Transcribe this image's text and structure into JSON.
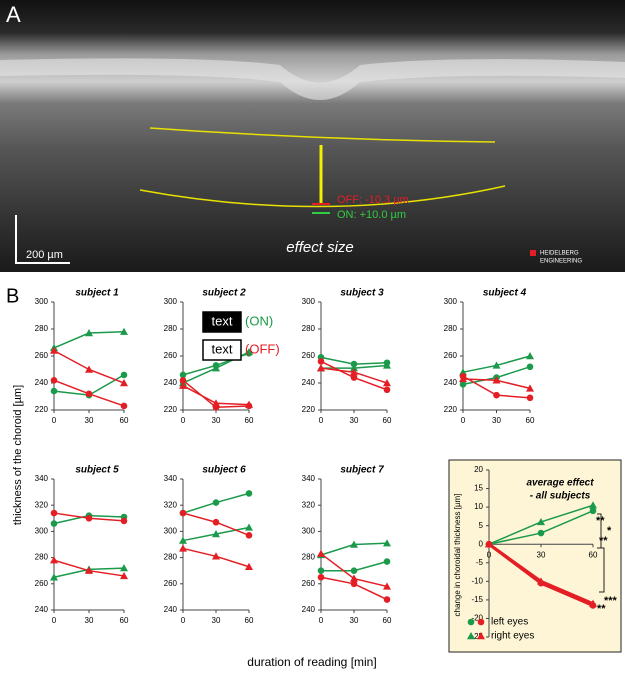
{
  "panel_a": {
    "label": "A",
    "off": "OFF: -10.3 µm",
    "on": "ON: +10.0 µm",
    "scale": "200 µm",
    "caption": "effect size",
    "logo1": "HEIDELBERG",
    "logo2": "ENGINEERING"
  },
  "figure": {
    "label": "B",
    "ylabel": "thickness of the choroid [µm]",
    "xlabel": "duration of reading [min]"
  },
  "chart_data": [
    {
      "type": "line",
      "title": "subject 1",
      "x": [
        0,
        30,
        60
      ],
      "xlim": [
        0,
        60
      ],
      "xticks": [
        0,
        30,
        60
      ],
      "ylim": [
        220,
        300
      ],
      "yticks": [
        220,
        240,
        260,
        280,
        300
      ],
      "series": [
        {
          "color": "#1a9a4a",
          "marker": "circle",
          "values": [
            234,
            231,
            246
          ]
        },
        {
          "color": "#1a9a4a",
          "marker": "triangle",
          "values": [
            266,
            277,
            278
          ]
        },
        {
          "color": "#e31e24",
          "marker": "circle",
          "values": [
            242,
            232,
            223
          ]
        },
        {
          "color": "#e31e24",
          "marker": "triangle",
          "values": [
            264,
            250,
            240
          ]
        }
      ]
    },
    {
      "type": "line",
      "title": "subject 2",
      "x": [
        0,
        30,
        60
      ],
      "xlim": [
        0,
        60
      ],
      "xticks": [
        0,
        30,
        60
      ],
      "ylim": [
        220,
        300
      ],
      "yticks": [
        220,
        240,
        260,
        280,
        300
      ],
      "legend": [
        {
          "box": "text",
          "label": "(ON)"
        },
        {
          "box": "text",
          "label": "(OFF)"
        }
      ],
      "series": [
        {
          "color": "#1a9a4a",
          "marker": "circle",
          "values": [
            246,
            253,
            262
          ]
        },
        {
          "color": "#1a9a4a",
          "marker": "triangle",
          "values": [
            240,
            251,
            263
          ]
        },
        {
          "color": "#e31e24",
          "marker": "circle",
          "values": [
            242,
            222,
            223
          ]
        },
        {
          "color": "#e31e24",
          "marker": "triangle",
          "values": [
            238,
            225,
            224
          ]
        }
      ]
    },
    {
      "type": "line",
      "title": "subject 3",
      "x": [
        0,
        30,
        60
      ],
      "xlim": [
        0,
        60
      ],
      "xticks": [
        0,
        30,
        60
      ],
      "ylim": [
        220,
        300
      ],
      "yticks": [
        220,
        240,
        260,
        280,
        300
      ],
      "series": [
        {
          "color": "#1a9a4a",
          "marker": "circle",
          "values": [
            259,
            254,
            255
          ]
        },
        {
          "color": "#1a9a4a",
          "marker": "triangle",
          "values": [
            251,
            251,
            253
          ]
        },
        {
          "color": "#e31e24",
          "marker": "circle",
          "values": [
            256,
            244,
            235
          ]
        },
        {
          "color": "#e31e24",
          "marker": "triangle",
          "values": [
            251,
            248,
            240
          ]
        }
      ]
    },
    {
      "type": "line",
      "title": "subject 4",
      "x": [
        0,
        30,
        60
      ],
      "xlim": [
        0,
        60
      ],
      "xticks": [
        0,
        30,
        60
      ],
      "ylim": [
        220,
        300
      ],
      "yticks": [
        220,
        240,
        260,
        280,
        300
      ],
      "series": [
        {
          "color": "#1a9a4a",
          "marker": "circle",
          "values": [
            239,
            244,
            252
          ]
        },
        {
          "color": "#1a9a4a",
          "marker": "triangle",
          "values": [
            248,
            253,
            260
          ]
        },
        {
          "color": "#e31e24",
          "marker": "circle",
          "values": [
            245,
            231,
            229
          ]
        },
        {
          "color": "#e31e24",
          "marker": "triangle",
          "values": [
            243,
            242,
            236
          ]
        }
      ]
    },
    {
      "type": "line",
      "title": "subject 5",
      "x": [
        0,
        30,
        60
      ],
      "xlim": [
        0,
        60
      ],
      "xticks": [
        0,
        30,
        60
      ],
      "ylim": [
        240,
        340
      ],
      "yticks": [
        240,
        260,
        280,
        300,
        320,
        340
      ],
      "series": [
        {
          "color": "#1a9a4a",
          "marker": "circle",
          "values": [
            306,
            312,
            311
          ]
        },
        {
          "color": "#1a9a4a",
          "marker": "triangle",
          "values": [
            265,
            271,
            272
          ]
        },
        {
          "color": "#e31e24",
          "marker": "circle",
          "values": [
            314,
            310,
            308
          ]
        },
        {
          "color": "#e31e24",
          "marker": "triangle",
          "values": [
            278,
            270,
            266
          ]
        }
      ]
    },
    {
      "type": "line",
      "title": "subject 6",
      "x": [
        0,
        30,
        60
      ],
      "xlim": [
        0,
        60
      ],
      "xticks": [
        0,
        30,
        60
      ],
      "ylim": [
        240,
        340
      ],
      "yticks": [
        240,
        260,
        280,
        300,
        320,
        340
      ],
      "series": [
        {
          "color": "#1a9a4a",
          "marker": "circle",
          "values": [
            314,
            322,
            329
          ]
        },
        {
          "color": "#1a9a4a",
          "marker": "triangle",
          "values": [
            293,
            298,
            303
          ]
        },
        {
          "color": "#e31e24",
          "marker": "circle",
          "values": [
            314,
            307,
            297
          ]
        },
        {
          "color": "#e31e24",
          "marker": "triangle",
          "values": [
            287,
            281,
            273
          ]
        }
      ]
    },
    {
      "type": "line",
      "title": "subject 7",
      "x": [
        0,
        30,
        60
      ],
      "xlim": [
        0,
        60
      ],
      "xticks": [
        0,
        30,
        60
      ],
      "ylim": [
        240,
        340
      ],
      "yticks": [
        240,
        260,
        280,
        300,
        320,
        340
      ],
      "series": [
        {
          "color": "#1a9a4a",
          "marker": "circle",
          "values": [
            270,
            270,
            277
          ]
        },
        {
          "color": "#1a9a4a",
          "marker": "triangle",
          "values": [
            282,
            290,
            291
          ]
        },
        {
          "color": "#e31e24",
          "marker": "circle",
          "values": [
            265,
            260,
            248
          ]
        },
        {
          "color": "#e31e24",
          "marker": "triangle",
          "values": [
            283,
            264,
            258
          ]
        }
      ]
    },
    {
      "type": "line",
      "title": "average effect",
      "subtitle": "- all subjects",
      "ylabel": "change in choroidal thickness [µm]",
      "x": [
        0,
        30,
        60
      ],
      "xlim": [
        0,
        60
      ],
      "xticks": [
        0,
        30,
        60
      ],
      "ylim": [
        -25,
        20
      ],
      "yticks": [
        -25,
        -20,
        -15,
        -10,
        -5,
        0,
        5,
        10,
        15,
        20
      ],
      "legend": [
        {
          "label": "left eyes",
          "marker": "circle"
        },
        {
          "label": "right eyes",
          "marker": "triangle"
        }
      ],
      "annotations": [
        "**",
        "*",
        "**",
        "***",
        "**"
      ],
      "series": [
        {
          "color": "#1a9a4a",
          "marker": "circle",
          "values": [
            0,
            3,
            9
          ]
        },
        {
          "color": "#1a9a4a",
          "marker": "triangle",
          "values": [
            0,
            6,
            10.5
          ]
        },
        {
          "color": "#e31e24",
          "marker": "circle",
          "values": [
            0,
            -10.5,
            -16.5
          ]
        },
        {
          "color": "#e31e24",
          "marker": "triangle",
          "values": [
            0,
            -10,
            -16
          ]
        }
      ]
    }
  ]
}
